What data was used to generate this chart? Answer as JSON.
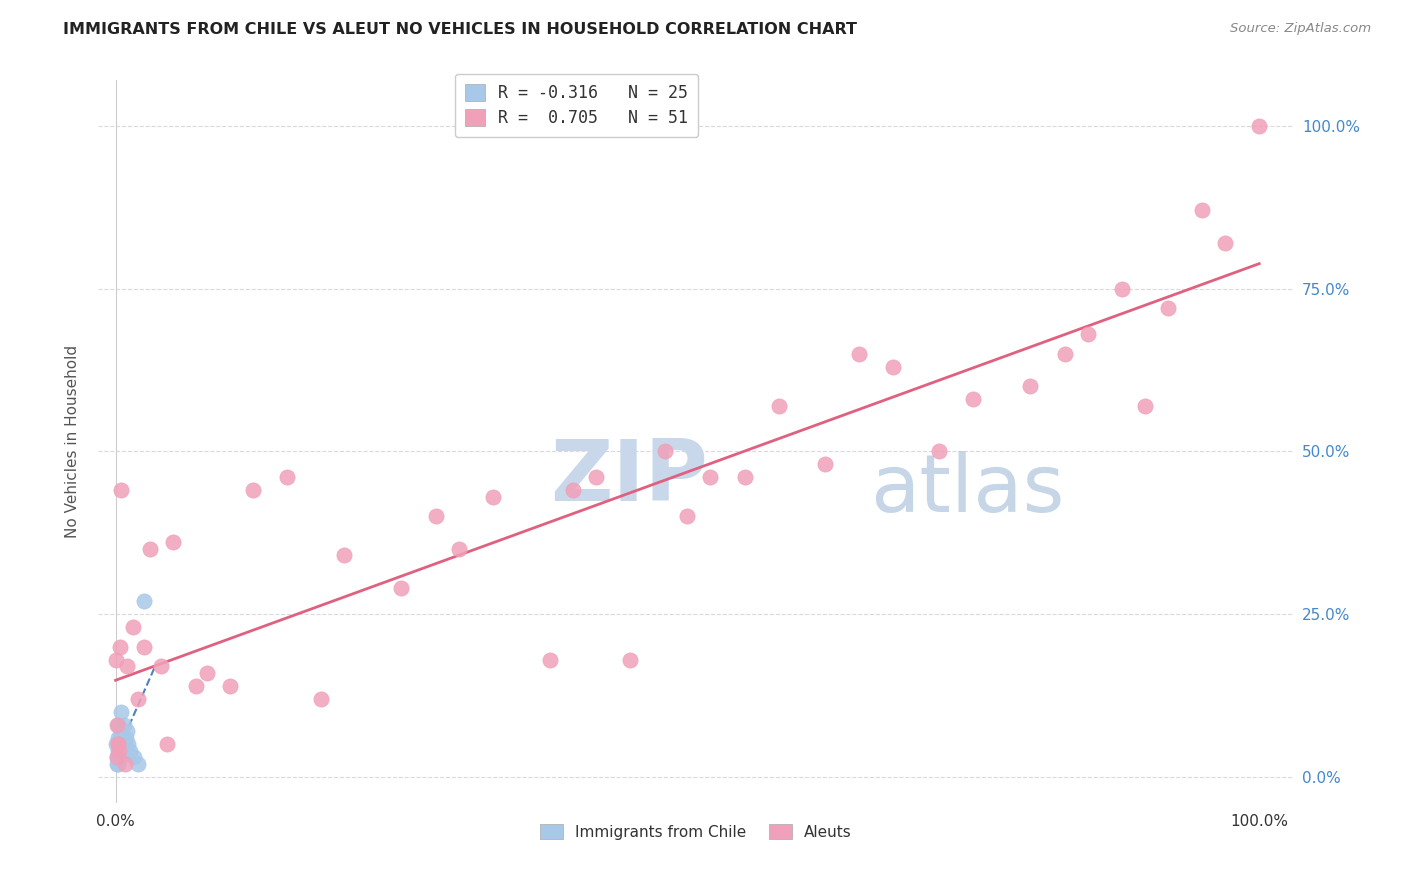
{
  "title": "IMMIGRANTS FROM CHILE VS ALEUT NO VEHICLES IN HOUSEHOLD CORRELATION CHART",
  "source": "Source: ZipAtlas.com",
  "ylabel": "No Vehicles in Household",
  "legend_entry1": "R = -0.316   N = 25",
  "legend_entry2": "R =  0.705   N = 51",
  "legend_label1": "Immigrants from Chile",
  "legend_label2": "Aleuts",
  "color_blue": "#a8c8e8",
  "color_pink": "#f0a0b8",
  "color_blue_line": "#5080c0",
  "color_pink_line": "#e06080",
  "watermark_zip_color": "#c8d8ea",
  "watermark_atlas_color": "#b8cce0",
  "background_color": "#ffffff",
  "grid_color": "#ddd8e0",
  "blue_x": [
    0.05,
    0.1,
    0.15,
    0.18,
    0.2,
    0.22,
    0.25,
    0.28,
    0.3,
    0.35,
    0.4,
    0.45,
    0.5,
    0.55,
    0.6,
    0.65,
    0.7,
    0.8,
    0.9,
    1.0,
    1.1,
    1.3,
    1.6,
    2.0,
    2.5
  ],
  "blue_y": [
    5.0,
    2.0,
    3.0,
    4.0,
    6.0,
    2.0,
    8.0,
    5.0,
    4.0,
    6.0,
    3.0,
    10.0,
    5.0,
    7.0,
    6.0,
    4.0,
    8.0,
    5.0,
    6.0,
    7.0,
    5.0,
    4.0,
    3.0,
    2.0,
    27.0
  ],
  "pink_x": [
    0.05,
    0.1,
    0.15,
    0.2,
    0.25,
    0.3,
    0.4,
    0.5,
    0.8,
    1.0,
    1.5,
    2.0,
    2.5,
    3.0,
    4.0,
    5.0,
    7.0,
    8.0,
    10.0,
    12.0,
    15.0,
    18.0,
    20.0,
    25.0,
    28.0,
    30.0,
    33.0,
    38.0,
    40.0,
    42.0,
    45.0,
    48.0,
    50.0,
    52.0,
    55.0,
    58.0,
    62.0,
    65.0,
    68.0,
    72.0,
    75.0,
    80.0,
    83.0,
    85.0,
    88.0,
    90.0,
    92.0,
    95.0,
    97.0,
    100.0,
    4.5
  ],
  "pink_y": [
    18.0,
    8.0,
    3.0,
    5.0,
    5.0,
    4.0,
    20.0,
    44.0,
    2.0,
    17.0,
    23.0,
    12.0,
    20.0,
    35.0,
    17.0,
    36.0,
    14.0,
    16.0,
    14.0,
    44.0,
    46.0,
    12.0,
    34.0,
    29.0,
    40.0,
    35.0,
    43.0,
    18.0,
    44.0,
    46.0,
    18.0,
    50.0,
    40.0,
    46.0,
    46.0,
    57.0,
    48.0,
    65.0,
    63.0,
    50.0,
    58.0,
    60.0,
    65.0,
    68.0,
    75.0,
    57.0,
    72.0,
    87.0,
    82.0,
    100.0,
    5.0
  ]
}
